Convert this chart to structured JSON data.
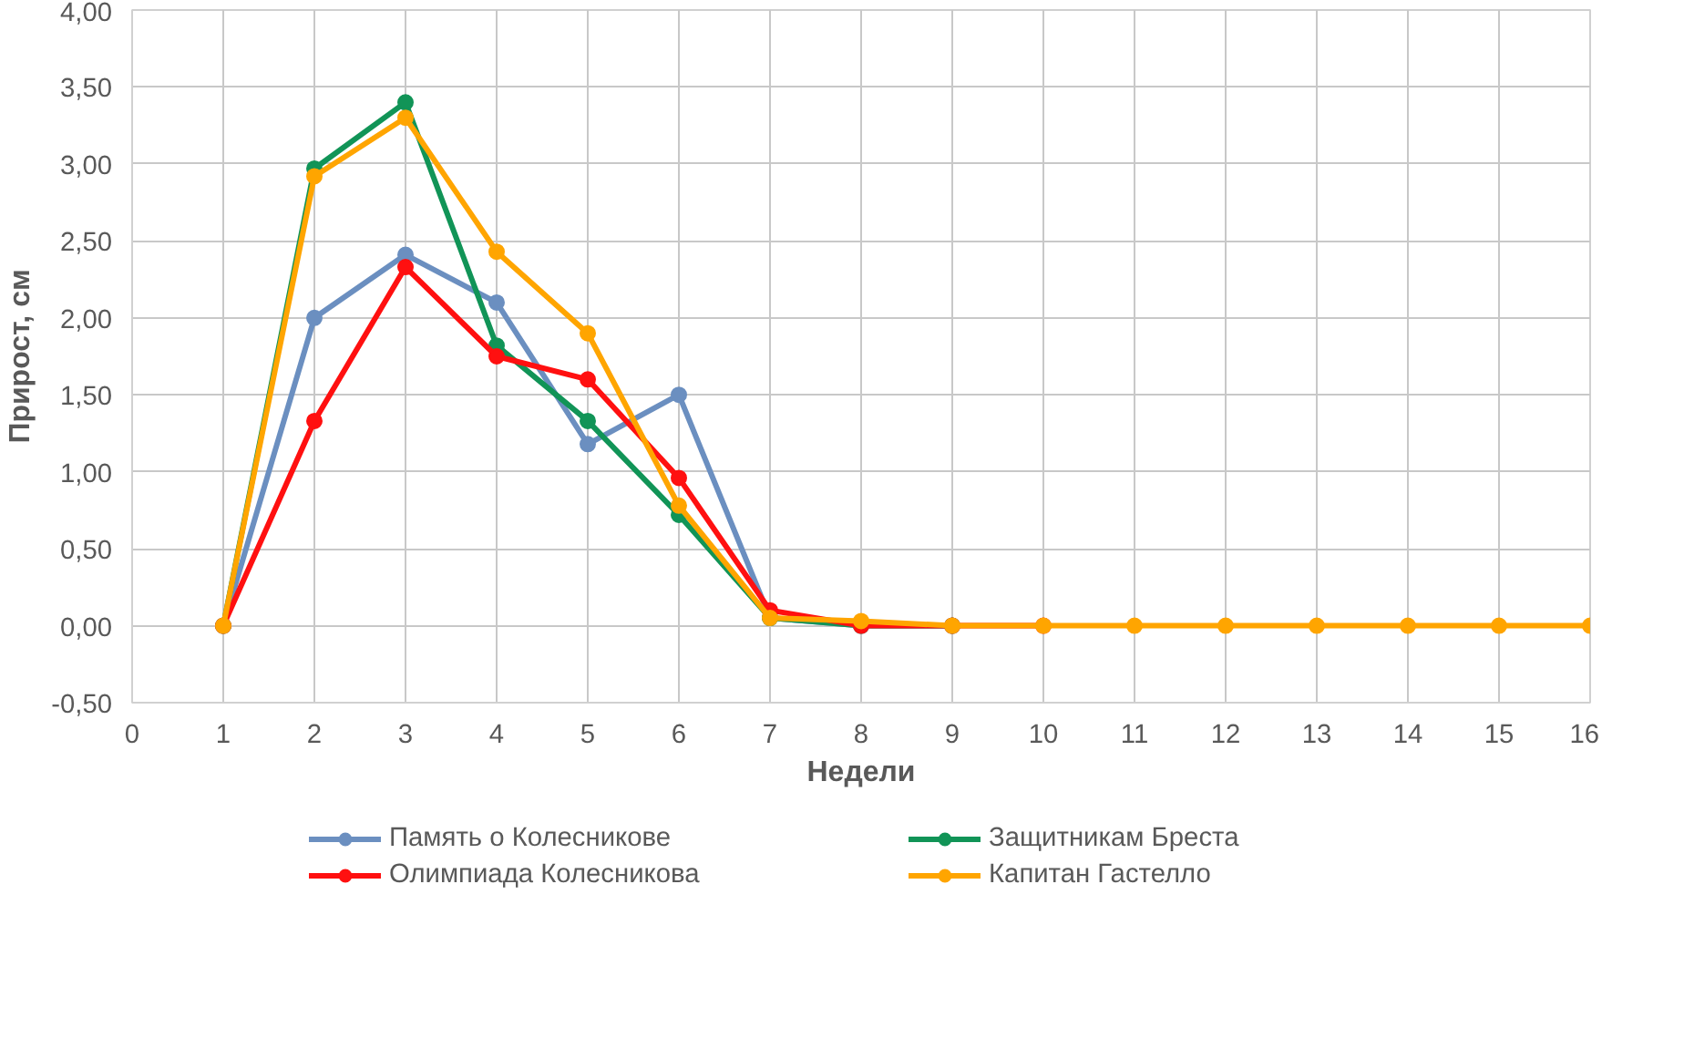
{
  "chart_data": {
    "type": "line",
    "xlabel": "Недели",
    "ylabel": "Прирост, см",
    "x": [
      1,
      2,
      3,
      4,
      5,
      6,
      7,
      8,
      9,
      10,
      11,
      12,
      13,
      14,
      15,
      16
    ],
    "series": [
      {
        "name": "Память о Колесникове",
        "color": "#6b8fc0",
        "values": [
          0,
          2.0,
          2.41,
          2.1,
          1.18,
          1.5,
          0.05,
          0,
          0,
          null,
          null,
          null,
          null,
          null,
          null,
          null
        ]
      },
      {
        "name": "Защитникам Бреста",
        "color": "#119457",
        "values": [
          0,
          2.97,
          3.4,
          1.82,
          1.33,
          0.72,
          0.05,
          0,
          0,
          null,
          null,
          null,
          null,
          null,
          null,
          null
        ]
      },
      {
        "name": "Олимпиада Колесникова",
        "color": "#ff1010",
        "values": [
          0,
          1.33,
          2.33,
          1.75,
          1.6,
          0.96,
          0.1,
          0,
          0,
          0,
          null,
          null,
          null,
          null,
          null,
          null
        ]
      },
      {
        "name": "Капитан Гастелло",
        "color": "#ffa500",
        "values": [
          0,
          2.92,
          3.3,
          2.43,
          1.9,
          0.78,
          0.05,
          0.03,
          0,
          0,
          0,
          0,
          0,
          0,
          0,
          0
        ]
      }
    ],
    "xlim": [
      0,
      16
    ],
    "xticks": [
      0,
      1,
      2,
      3,
      4,
      5,
      6,
      7,
      8,
      9,
      10,
      11,
      12,
      13,
      14,
      15,
      16
    ],
    "ylim": [
      -0.5,
      4
    ],
    "yticks": [
      {
        "value": -0.5,
        "label": "-0,50"
      },
      {
        "value": 0,
        "label": "0,00"
      },
      {
        "value": 0.5,
        "label": "0,50"
      },
      {
        "value": 1,
        "label": "1,00"
      },
      {
        "value": 1.5,
        "label": "1,50"
      },
      {
        "value": 2,
        "label": "2,00"
      },
      {
        "value": 2.5,
        "label": "2,50"
      },
      {
        "value": 3,
        "label": "3,00"
      },
      {
        "value": 3.5,
        "label": "3,50"
      },
      {
        "value": 4,
        "label": "4,00"
      }
    ],
    "grid": true,
    "legend": "bottom",
    "marker": "circle",
    "line_style": "solid"
  }
}
